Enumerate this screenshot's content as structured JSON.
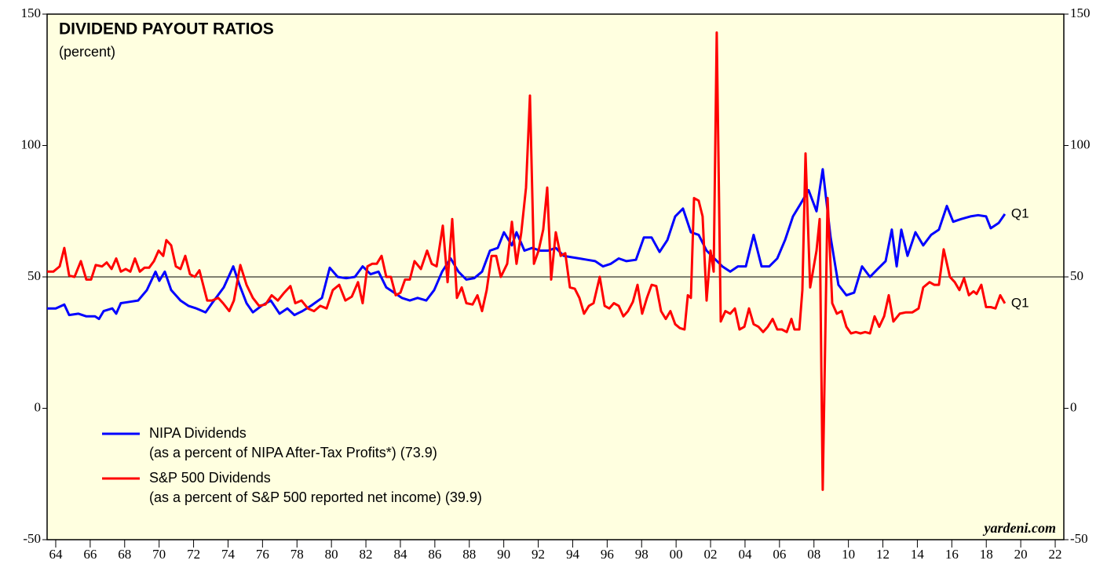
{
  "chart_data": {
    "type": "line",
    "title": "DIVIDEND PAYOUT RATIOS",
    "subtitle": "(percent)",
    "source": "yardeni.com",
    "xlim": [
      1963.5,
      2022.5
    ],
    "xticks": [
      {
        "value": 1964,
        "label": "64"
      },
      {
        "value": 1966,
        "label": "66"
      },
      {
        "value": 1968,
        "label": "68"
      },
      {
        "value": 1970,
        "label": "70"
      },
      {
        "value": 1972,
        "label": "72"
      },
      {
        "value": 1974,
        "label": "74"
      },
      {
        "value": 1976,
        "label": "76"
      },
      {
        "value": 1978,
        "label": "78"
      },
      {
        "value": 1980,
        "label": "80"
      },
      {
        "value": 1982,
        "label": "82"
      },
      {
        "value": 1984,
        "label": "84"
      },
      {
        "value": 1986,
        "label": "86"
      },
      {
        "value": 1988,
        "label": "88"
      },
      {
        "value": 1990,
        "label": "90"
      },
      {
        "value": 1992,
        "label": "92"
      },
      {
        "value": 1994,
        "label": "94"
      },
      {
        "value": 1996,
        "label": "96"
      },
      {
        "value": 1998,
        "label": "98"
      },
      {
        "value": 2000,
        "label": "00"
      },
      {
        "value": 2002,
        "label": "02"
      },
      {
        "value": 2004,
        "label": "04"
      },
      {
        "value": 2006,
        "label": "06"
      },
      {
        "value": 2008,
        "label": "08"
      },
      {
        "value": 2010,
        "label": "10"
      },
      {
        "value": 2012,
        "label": "12"
      },
      {
        "value": 2014,
        "label": "14"
      },
      {
        "value": 2016,
        "label": "16"
      },
      {
        "value": 2018,
        "label": "18"
      },
      {
        "value": 2020,
        "label": "20"
      },
      {
        "value": 2022,
        "label": "22"
      }
    ],
    "ylim": [
      -50,
      150
    ],
    "yticks": [
      150,
      100,
      50,
      0,
      -50
    ],
    "y2lim": [
      -50,
      150
    ],
    "y2ticks": [
      150,
      100,
      50,
      0,
      -50
    ],
    "reference_line": 50,
    "background": "#ffffe0",
    "series": [
      {
        "name": "NIPA Dividends",
        "description": "(as a percent of NIPA After-Tax Profits*) (73.9)",
        "end_label": "Q1",
        "color": "#0000ff",
        "x": [
          1963.5,
          1964.0,
          1964.5,
          1964.78,
          1965.32,
          1965.78,
          1966.28,
          1966.51,
          1966.78,
          1967.28,
          1967.51,
          1967.78,
          1968.28,
          1968.78,
          1969.29,
          1969.79,
          1970.01,
          1970.33,
          1970.7,
          1971.24,
          1971.7,
          1972.16,
          1972.7,
          1973.07,
          1973.75,
          1974.3,
          1974.66,
          1975.07,
          1975.44,
          1975.94,
          1976.48,
          1976.99,
          1977.44,
          1977.85,
          1978.31,
          1978.81,
          1979.45,
          1979.9,
          1980.36,
          1980.86,
          1981.36,
          1981.81,
          1982.27,
          1982.73,
          1983.18,
          1983.64,
          1984.09,
          1984.55,
          1985.0,
          1985.5,
          1985.96,
          1986.42,
          1986.92,
          1987.37,
          1987.83,
          1988.28,
          1988.74,
          1989.2,
          1989.65,
          1990.01,
          1990.47,
          1990.74,
          1991.2,
          1991.65,
          1992.11,
          1992.57,
          1993.02,
          1993.48,
          1993.93,
          1994.39,
          1994.84,
          1995.3,
          1995.76,
          1996.21,
          1996.67,
          1997.12,
          1997.67,
          1998.13,
          1998.58,
          1999.04,
          1999.49,
          1999.95,
          2000.4,
          2000.86,
          2001.31,
          2001.77,
          2002.22,
          2002.68,
          2003.14,
          2003.59,
          2004.05,
          2004.5,
          2004.96,
          2005.41,
          2005.87,
          2006.32,
          2006.78,
          2007.24,
          2007.69,
          2008.15,
          2008.51,
          2008.97,
          2009.42,
          2009.88,
          2010.33,
          2010.79,
          2011.25,
          2011.7,
          2012.16,
          2012.52,
          2012.8,
          2013.07,
          2013.43,
          2013.89,
          2014.34,
          2014.8,
          2015.25,
          2015.71,
          2016.08,
          2016.53,
          2017.08,
          2017.53,
          2017.99,
          2018.26,
          2018.72,
          2019.08
        ],
        "values": [
          38,
          38,
          39.5,
          35.5,
          36,
          35,
          35,
          34,
          37,
          38,
          36,
          40,
          40.5,
          41,
          45,
          52,
          48.5,
          52,
          45,
          41,
          39,
          38,
          36.5,
          40,
          46,
          54,
          47,
          40,
          36.5,
          39,
          41,
          36,
          38,
          35.5,
          37,
          39,
          42,
          53.5,
          50,
          49.5,
          50,
          54,
          51,
          52,
          46,
          44,
          42,
          41,
          42,
          41,
          45,
          52,
          57,
          52,
          49,
          49.5,
          52,
          60,
          61,
          67,
          62,
          67,
          60,
          61,
          60,
          60,
          61,
          58,
          57.5,
          57,
          56.5,
          56,
          54,
          55,
          57,
          56,
          56.5,
          65,
          65,
          59.5,
          64,
          73,
          76,
          67,
          66,
          60,
          57,
          54,
          52,
          54,
          54,
          66,
          54,
          54,
          57,
          64,
          73,
          78,
          83,
          75,
          91,
          65,
          47,
          43,
          44,
          54,
          50,
          53,
          56,
          68,
          54,
          68,
          58,
          67,
          62,
          66,
          68,
          77,
          71,
          72,
          73,
          73.5,
          73,
          68.5,
          70.5,
          73.9
        ]
      },
      {
        "name": "S&P 500 Dividends",
        "description": "(as a percent of S&P 500 reported net income) (39.9)",
        "end_label": "Q1",
        "color": "#ff0000",
        "x": [
          1963.5,
          1963.86,
          1964.23,
          1964.5,
          1964.78,
          1965.09,
          1965.46,
          1965.78,
          1966.05,
          1966.32,
          1966.69,
          1966.96,
          1967.24,
          1967.51,
          1967.78,
          1968.06,
          1968.33,
          1968.6,
          1968.88,
          1969.15,
          1969.42,
          1969.7,
          1969.97,
          1970.24,
          1970.42,
          1970.7,
          1970.97,
          1971.24,
          1971.52,
          1971.79,
          1972.07,
          1972.34,
          1972.79,
          1973.07,
          1973.43,
          1973.71,
          1974.07,
          1974.34,
          1974.71,
          1975.07,
          1975.44,
          1975.8,
          1976.17,
          1976.53,
          1976.89,
          1977.26,
          1977.62,
          1977.9,
          1978.26,
          1978.63,
          1978.99,
          1979.35,
          1979.72,
          1980.08,
          1980.45,
          1980.81,
          1981.18,
          1981.54,
          1981.81,
          1982.09,
          1982.36,
          1982.63,
          1982.91,
          1983.18,
          1983.45,
          1983.73,
          1984.0,
          1984.27,
          1984.55,
          1984.82,
          1985.19,
          1985.55,
          1985.82,
          1986.1,
          1986.46,
          1986.74,
          1987.01,
          1987.28,
          1987.56,
          1987.83,
          1988.19,
          1988.47,
          1988.74,
          1989.01,
          1989.29,
          1989.56,
          1989.83,
          1990.2,
          1990.47,
          1990.74,
          1991.02,
          1991.29,
          1991.52,
          1991.75,
          1992.02,
          1992.29,
          1992.52,
          1992.75,
          1993.02,
          1993.3,
          1993.57,
          1993.84,
          1994.12,
          1994.39,
          1994.66,
          1994.94,
          1995.21,
          1995.57,
          1995.85,
          1996.12,
          1996.39,
          1996.67,
          1996.94,
          1997.21,
          1997.49,
          1997.76,
          1998.03,
          1998.31,
          1998.58,
          1998.85,
          1999.13,
          1999.4,
          1999.67,
          1999.95,
          2000.22,
          2000.49,
          2000.68,
          2000.86,
          2001.04,
          2001.31,
          2001.54,
          2001.77,
          2002.0,
          2002.18,
          2002.36,
          2002.59,
          2002.86,
          2003.14,
          2003.41,
          2003.68,
          2003.96,
          2004.23,
          2004.5,
          2004.78,
          2005.05,
          2005.32,
          2005.6,
          2005.87,
          2006.14,
          2006.42,
          2006.69,
          2006.87,
          2007.15,
          2007.33,
          2007.51,
          2007.78,
          2008.15,
          2008.33,
          2008.51,
          2008.79,
          2009.06,
          2009.33,
          2009.61,
          2009.88,
          2010.15,
          2010.43,
          2010.7,
          2010.97,
          2011.25,
          2011.52,
          2011.79,
          2012.07,
          2012.34,
          2012.61,
          2012.98,
          2013.34,
          2013.71,
          2014.07,
          2014.34,
          2014.71,
          2014.98,
          2015.25,
          2015.53,
          2015.89,
          2016.17,
          2016.44,
          2016.71,
          2016.99,
          2017.26,
          2017.44,
          2017.71,
          2017.99,
          2018.26,
          2018.53,
          2018.81,
          2019.08
        ],
        "values": [
          52,
          52,
          54,
          61,
          50.5,
          50,
          56,
          49,
          49,
          54.5,
          54,
          55.5,
          53,
          57,
          52,
          53,
          52,
          57,
          52,
          53.5,
          53.5,
          56,
          60,
          58,
          64,
          62,
          54,
          53,
          58,
          51,
          50,
          52.5,
          41,
          41,
          42,
          40,
          37,
          41,
          54.5,
          47,
          42,
          39,
          39.5,
          43,
          41,
          44,
          46.5,
          40,
          41,
          38,
          37,
          39,
          38,
          45,
          47,
          41,
          42.5,
          48,
          40,
          54,
          55,
          55,
          58,
          50,
          50,
          43,
          44,
          49,
          49,
          56,
          53,
          60,
          55,
          54,
          69.5,
          48,
          72,
          42,
          46,
          40,
          39.5,
          43,
          37,
          45,
          58,
          58,
          50,
          55,
          71,
          55,
          67,
          84,
          119,
          55,
          60,
          68,
          84,
          49,
          67,
          58,
          59,
          46,
          45.5,
          42,
          36,
          39,
          40,
          50,
          39,
          38,
          40,
          39,
          35,
          37,
          40.5,
          47,
          36,
          42,
          47,
          46.5,
          37,
          34,
          37,
          32,
          30.5,
          30,
          43,
          42,
          80,
          79,
          73,
          41,
          60,
          52,
          143,
          33,
          37,
          36,
          38,
          30,
          31,
          38,
          32,
          31,
          29,
          31,
          34,
          30,
          30,
          29,
          34,
          30,
          30,
          45,
          97,
          46,
          60,
          72,
          -31,
          80,
          40,
          36,
          37,
          31,
          28.5,
          29,
          28.5,
          29,
          28.5,
          35,
          31,
          35,
          43,
          33,
          36,
          36.5,
          36.5,
          38,
          46,
          48,
          47,
          47,
          60.5,
          50,
          48,
          45,
          49.5,
          43,
          44.5,
          43.5,
          47,
          38.5,
          38.5,
          38,
          43,
          39.9
        ]
      }
    ]
  }
}
